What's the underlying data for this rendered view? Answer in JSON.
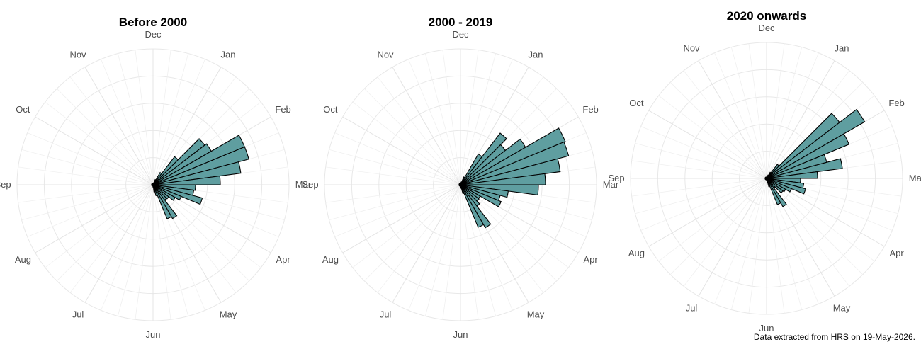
{
  "chart_data": [
    {
      "type": "polar-bar",
      "title": "Before 2000",
      "months": [
        "Jan",
        "Feb",
        "Mar",
        "Apr",
        "May",
        "Jun",
        "Jul",
        "Aug",
        "Sep",
        "Oct",
        "Nov",
        "Dec"
      ],
      "values": [
        2,
        2,
        3,
        8,
        20,
        50,
        92,
        95,
        140,
        140,
        125,
        95,
        60,
        58,
        72,
        43,
        36,
        28,
        27,
        55,
        52,
        16,
        10,
        4,
        2,
        2,
        2,
        2,
        2,
        2,
        2,
        2,
        2,
        2,
        2,
        2,
        2,
        2,
        2,
        2,
        2,
        2,
        2,
        2,
        2,
        2,
        2,
        2
      ],
      "fill": "#5f9ea0",
      "stroke": "#000000"
    },
    {
      "type": "polar-bar",
      "title": "2000 - 2019",
      "months": [
        "Jan",
        "Feb",
        "Mar",
        "Apr",
        "May",
        "Jun",
        "Jul",
        "Aug",
        "Sep",
        "Oct",
        "Nov",
        "Dec"
      ],
      "values": [
        2,
        3,
        4,
        12,
        50,
        92,
        80,
        106,
        160,
        158,
        142,
        120,
        110,
        68,
        58,
        62,
        32,
        33,
        38,
        70,
        65,
        13,
        5,
        3,
        2,
        2,
        2,
        2,
        2,
        2,
        2,
        2,
        2,
        2,
        2,
        2,
        2,
        2,
        2,
        2,
        2,
        2,
        2,
        2,
        2,
        2,
        2,
        2
      ],
      "fill": "#5f9ea0",
      "stroke": "#000000"
    },
    {
      "type": "polar-bar",
      "title": "2020 onwards",
      "months": [
        "Jan",
        "Feb",
        "Mar",
        "Apr",
        "May",
        "Jun",
        "Jul",
        "Aug",
        "Sep",
        "Oct",
        "Nov",
        "Dec"
      ],
      "values": [
        2,
        2,
        4,
        5,
        10,
        25,
        130,
        160,
        126,
        88,
        108,
        72,
        48,
        53,
        57,
        38,
        31,
        29,
        17,
        46,
        40,
        12,
        6,
        3,
        2,
        2,
        2,
        2,
        2,
        2,
        2,
        2,
        2,
        2,
        2,
        2,
        2,
        2,
        2,
        2,
        2,
        2,
        2,
        2,
        2,
        2,
        2,
        2
      ],
      "fill": "#5f9ea0",
      "stroke": "#000000"
    }
  ],
  "caption": "Data extracted from HRS on 19-May-2026."
}
